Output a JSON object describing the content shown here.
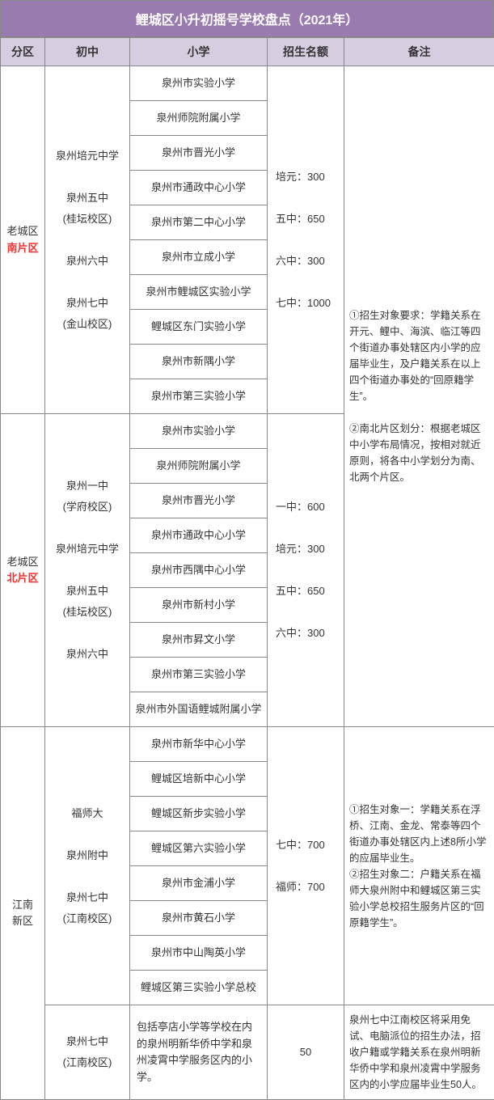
{
  "title": "鲤城区小升初摇号学校盘点（2021年）",
  "headers": {
    "zone": "分区",
    "middle": "初中",
    "primary": "小学",
    "quota": "招生名额",
    "note": "备注"
  },
  "zone1": {
    "name_line1": "老城区",
    "name_line2": "南片区",
    "middles": [
      "泉州培元中学",
      "泉州五中",
      "(桂坛校区)",
      "泉州六中",
      "泉州七中",
      "(金山校区)"
    ],
    "primaries": [
      "泉州市实验小学",
      "泉州师院附属小学",
      "泉州市晋光小学",
      "泉州市通政中心小学",
      "泉州市第二中心小学",
      "泉州市立成小学",
      "泉州市鲤城区实验小学",
      "鲤城区东门实验小学",
      "泉州市新隅小学",
      "泉州市第三实验小学"
    ],
    "quotas": [
      "培元：300",
      "五中：650",
      "六中：300",
      "七中：1000"
    ]
  },
  "zone2": {
    "name_line1": "老城区",
    "name_line2": "北片区",
    "middles": [
      "泉州一中",
      "(学府校区)",
      "泉州培元中学",
      "泉州五中",
      "(桂坛校区)",
      "泉州六中"
    ],
    "primaries": [
      "泉州市实验小学",
      "泉州师院附属小学",
      "泉州市晋光小学",
      "泉州市通政中心小学",
      "泉州市西隅中心小学",
      "泉州市新村小学",
      "泉州市昇文小学",
      "泉州市第三实验小学",
      "泉州市外国语鲤城附属小学"
    ],
    "quotas": [
      "一中：600",
      "培元：300",
      "五中：650",
      "六中：300"
    ]
  },
  "note_top": "①招生对象要求：学籍关系在开元、鲤中、海滨、临江等四个街道办事处辖区内小学的应届毕业生，及户籍关系在以上四个街道办事处的“回原籍学生”。\n\n②南北片区划分：根据老城区中小学布局情况，按相对就近原则，将各中小学划分为南、北两个片区。",
  "zone3": {
    "name_line1": "江南",
    "name_line2": "新区",
    "part1": {
      "middles": [
        "福师大",
        "泉州附中",
        "泉州七中",
        "(江南校区)"
      ],
      "primaries": [
        "泉州市新华中心小学",
        "鲤城区培新中心小学",
        "鲤城区新步实验小学",
        "鲤城区第六实验小学",
        "泉州市金浦小学",
        "泉州市黄石小学",
        "泉州市中山陶英小学",
        "鲤城区第三实验小学总校"
      ],
      "quotas": [
        "七中：700",
        "福师：700"
      ],
      "note": "①招生对象一：学籍关系在浮桥、江南、金龙、常泰等四个街道办事处辖区内上述8所小学的应届毕业生。\n②招生对象二：户籍关系在福师大泉州附中和鲤城区第三实验小学总校招生服务片区的“回原籍学生”。"
    },
    "part2": {
      "middles": [
        "泉州七中",
        "(江南校区)"
      ],
      "primary_text": "包括亭店小学等学校在内的泉州明新华侨中学和泉州凌霄中学服务区内的小学。",
      "quota": "50",
      "note": "泉州七中江南校区将采用免试、电脑派位的招生办法，招收户籍或学籍关系在泉州明新华侨中学和泉州凌霄中学服务区内的小学应届毕业生50人。"
    }
  }
}
